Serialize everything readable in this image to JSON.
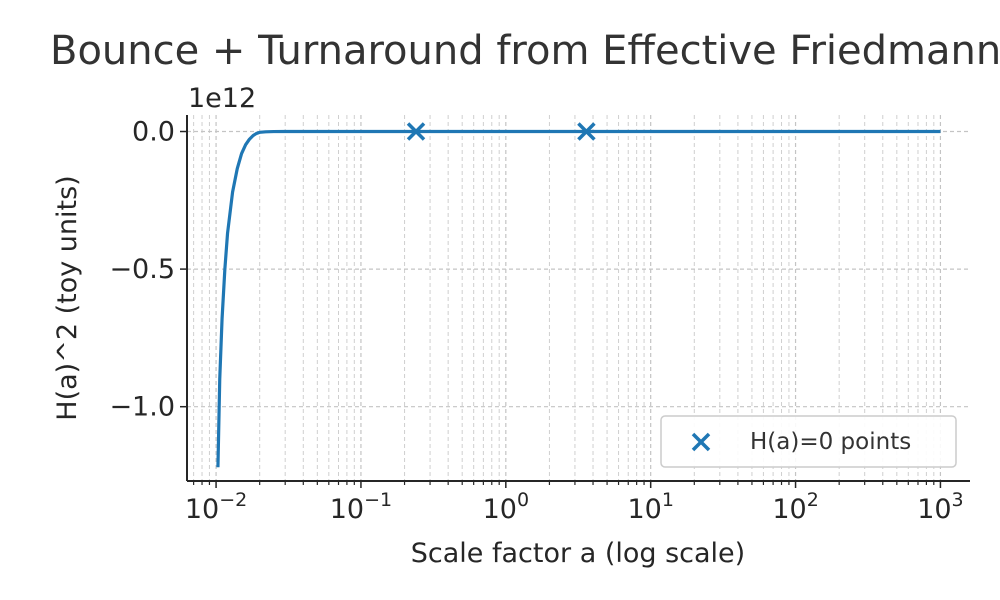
{
  "chart_data": {
    "type": "line",
    "title": "Bounce + Turnaround from Effective Friedmann",
    "xlabel": "Scale factor a (log scale)",
    "ylabel": "H(a)^2 (toy units)",
    "y_offset_label": "1e12",
    "x_scale": "log",
    "xlim": [
      0.0063,
      1600
    ],
    "ylim": [
      -1270000000000.0,
      60000000000.0
    ],
    "grid": "both, dashed",
    "x_ticks": [
      {
        "value": 0.01,
        "base": "10",
        "exp": "−2"
      },
      {
        "value": 0.1,
        "base": "10",
        "exp": "−1"
      },
      {
        "value": 1,
        "base": "10",
        "exp": "0"
      },
      {
        "value": 10,
        "base": "10",
        "exp": "1"
      },
      {
        "value": 100,
        "base": "10",
        "exp": "2"
      },
      {
        "value": 1000,
        "base": "10",
        "exp": "3"
      }
    ],
    "y_ticks": [
      {
        "value": 0,
        "label": "0.0"
      },
      {
        "value": -500000000000.0,
        "label": "−0.5"
      },
      {
        "value": -1000000000000.0,
        "label": "−1.0"
      }
    ],
    "series": [
      {
        "type": "line",
        "color": "#1f77b4",
        "x": [
          0.0103,
          0.0106,
          0.011,
          0.0115,
          0.012,
          0.013,
          0.014,
          0.015,
          0.016,
          0.017,
          0.018,
          0.019,
          0.02,
          0.022,
          0.025,
          0.03,
          0.05,
          0.1,
          1,
          10,
          100,
          1000
        ],
        "y": [
          -1220000000000.0,
          -900000000000.0,
          -680000000000.0,
          -500000000000.0,
          -370000000000.0,
          -220000000000.0,
          -135000000000.0,
          -80000000000.0,
          -48000000000.0,
          -28000000000.0,
          -15000000000.0,
          -7000000000.0,
          -3000000000.0,
          -1000000000.0,
          -200000000.0,
          0,
          0,
          0,
          0,
          0,
          0,
          0
        ]
      },
      {
        "type": "scatter",
        "name": "H(a)=0 points",
        "marker": "x",
        "color": "#1f77b4",
        "x": [
          0.24,
          3.6
        ],
        "y": [
          0,
          0
        ]
      }
    ],
    "legend": {
      "placement": "lower right",
      "entries": [
        "H(a)=0 points"
      ]
    }
  }
}
